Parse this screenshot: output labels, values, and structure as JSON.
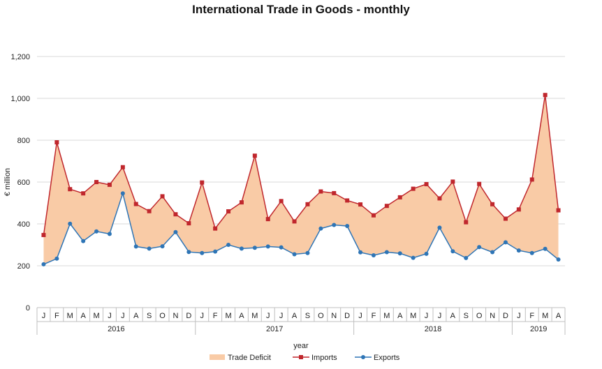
{
  "chart_data": {
    "type": "line",
    "title": "International Trade in Goods - monthly",
    "xlabel": "year",
    "ylabel": "€ million",
    "ylim": [
      0,
      1200
    ],
    "yticks": [
      "0",
      "200",
      "400",
      "600",
      "800",
      "1,000",
      "1,200"
    ],
    "ytick_values": [
      0,
      200,
      400,
      600,
      800,
      1000,
      1200
    ],
    "grid": true,
    "legend": "bottom",
    "months": [
      "J",
      "F",
      "M",
      "A",
      "M",
      "J",
      "J",
      "A",
      "S",
      "O",
      "N",
      "D",
      "J",
      "F",
      "M",
      "A",
      "M",
      "J",
      "J",
      "A",
      "S",
      "O",
      "N",
      "D",
      "J",
      "F",
      "M",
      "A",
      "M",
      "J",
      "J",
      "A",
      "S",
      "O",
      "N",
      "D",
      "J",
      "F",
      "M",
      "A"
    ],
    "years": [
      {
        "label": "2016",
        "count": 12
      },
      {
        "label": "2017",
        "count": 12
      },
      {
        "label": "2018",
        "count": 12
      },
      {
        "label": "2019",
        "count": 4
      }
    ],
    "series": [
      {
        "name": "Trade Deficit",
        "kind": "area",
        "color": "#f9cba6"
      },
      {
        "name": "Imports",
        "kind": "line",
        "color": "#c0272d",
        "marker": "square",
        "values": [
          347,
          790,
          566,
          546,
          600,
          587,
          671,
          495,
          461,
          532,
          446,
          403,
          598,
          378,
          460,
          503,
          726,
          423,
          509,
          412,
          494,
          555,
          547,
          512,
          493,
          441,
          486,
          527,
          568,
          590,
          522,
          602,
          408,
          591,
          494,
          425,
          469,
          612,
          1016,
          465
        ]
      },
      {
        "name": "Exports",
        "kind": "line",
        "color": "#2e75b6",
        "marker": "circle",
        "values": [
          207,
          234,
          401,
          318,
          364,
          352,
          546,
          292,
          282,
          293,
          361,
          266,
          261,
          268,
          300,
          282,
          286,
          292,
          288,
          255,
          261,
          378,
          395,
          390,
          264,
          250,
          265,
          259,
          238,
          257,
          382,
          269,
          237,
          289,
          265,
          312,
          273,
          261,
          281,
          230
        ]
      }
    ]
  }
}
